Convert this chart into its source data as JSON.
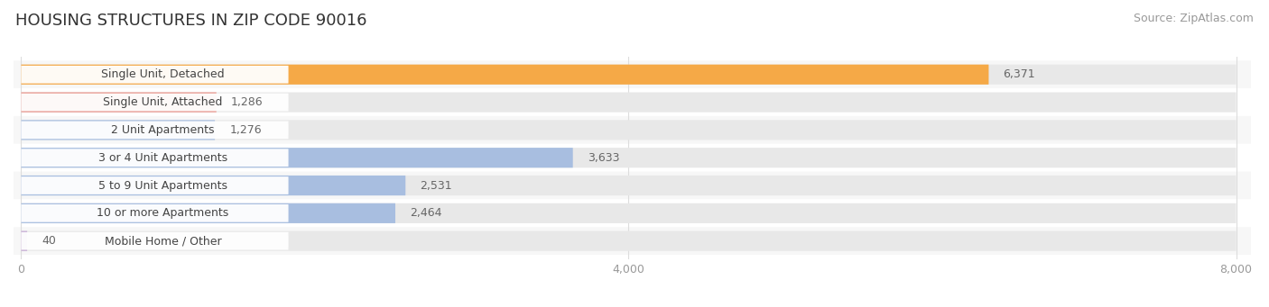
{
  "title": "HOUSING STRUCTURES IN ZIP CODE 90016",
  "source": "Source: ZipAtlas.com",
  "categories": [
    "Single Unit, Detached",
    "Single Unit, Attached",
    "2 Unit Apartments",
    "3 or 4 Unit Apartments",
    "5 to 9 Unit Apartments",
    "10 or more Apartments",
    "Mobile Home / Other"
  ],
  "values": [
    6371,
    1286,
    1276,
    3633,
    2531,
    2464,
    40
  ],
  "bar_colors": [
    "#F5A947",
    "#E8938A",
    "#A8BEE0",
    "#A8BEE0",
    "#A8BEE0",
    "#A8BEE0",
    "#C4A8D4"
  ],
  "bar_bg_color": "#E8E8E8",
  "xlim_max": 8000,
  "xticks": [
    0,
    4000,
    8000
  ],
  "title_fontsize": 13,
  "source_fontsize": 9,
  "label_fontsize": 9,
  "value_fontsize": 9,
  "background_color": "#FFFFFF",
  "bar_height": 0.72,
  "row_bg_colors": [
    "#F7F7F7",
    "#FFFFFF"
  ],
  "grid_color": "#DDDDDD",
  "label_box_color": "#FFFFFF",
  "label_text_color": "#444444",
  "value_text_color": "#666666",
  "tick_color": "#999999"
}
